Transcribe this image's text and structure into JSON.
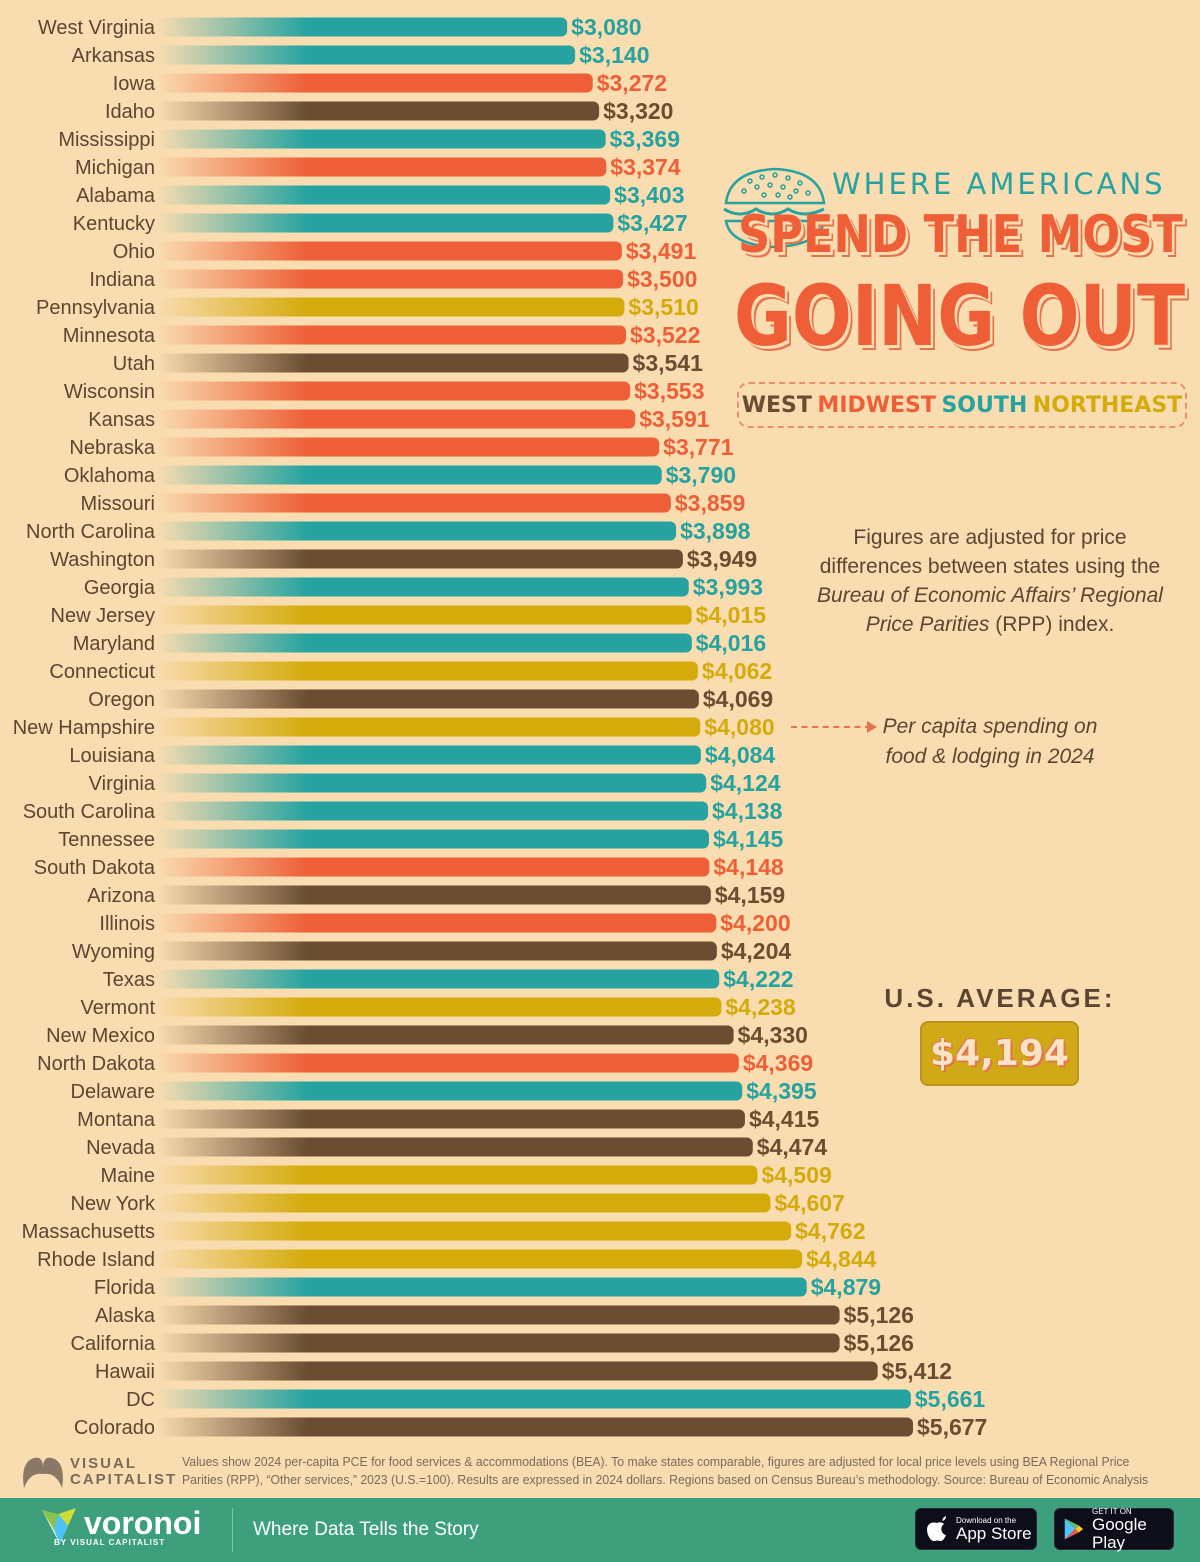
{
  "title": {
    "kicker": "WHERE AMERICANS",
    "line1": "SPEND THE MOST",
    "line2": "GOING OUT"
  },
  "legend": [
    {
      "label": "WEST",
      "color": "#6b4e32"
    },
    {
      "label": "MIDWEST",
      "color": "#ee5f37"
    },
    {
      "label": "SOUTH",
      "color": "#26a3a0"
    },
    {
      "label": "NORTHEAST",
      "color": "#d4ab0b"
    }
  ],
  "note": {
    "line1": "Figures are adjusted for price differences between states using the",
    "italic": "Bureau of Economic Affairs’ Regional Price Parities",
    "line3": " (RPP) index."
  },
  "callout": "Per capita spending on food & lodging in 2024",
  "us_average": {
    "label": "U.S. AVERAGE:",
    "value": "$4,194"
  },
  "source": "Values show 2024 per-capita PCE for food services & accommodations (BEA). To make states comparable, figures are adjusted for local price levels using BEA Regional Price Parities (RPP), “Other services,” 2023 (U.S.=100). Results are expressed in 2024 dollars. Regions based on Census Bureau’s methodology. Source: Bureau of Economic Analysis",
  "branding": {
    "vc_line1": "VISUAL",
    "vc_line2": "CAPITALIST",
    "voronoi": "voronoi",
    "voronoi_sub": "BY VISUAL CAPITALIST",
    "tagline": "Where Data Tells the Story",
    "appstore_small": "Download on the",
    "appstore_big": "App Store",
    "gplay_small": "GET IT ON",
    "gplay_big": "Google Play"
  },
  "region_colors": {
    "West": "#6b4e32",
    "Midwest": "#ee5f37",
    "South": "#26a3a0",
    "Northeast": "#d4ab0b"
  },
  "chart_data": {
    "type": "bar",
    "orientation": "horizontal",
    "title": "Where Americans Spend the Most Going Out",
    "xlabel": "Per capita spending on food & lodging in 2024 (USD)",
    "ylabel": "",
    "value_prefix": "$",
    "grid": false,
    "legend_position": "right",
    "categories": [
      "West Virginia",
      "Arkansas",
      "Iowa",
      "Idaho",
      "Mississippi",
      "Michigan",
      "Alabama",
      "Kentucky",
      "Ohio",
      "Indiana",
      "Pennsylvania",
      "Minnesota",
      "Utah",
      "Wisconsin",
      "Kansas",
      "Nebraska",
      "Oklahoma",
      "Missouri",
      "North Carolina",
      "Washington",
      "Georgia",
      "New Jersey",
      "Maryland",
      "Connecticut",
      "Oregon",
      "New Hampshire",
      "Louisiana",
      "Virginia",
      "South Carolina",
      "Tennessee",
      "South Dakota",
      "Arizona",
      "Illinois",
      "Wyoming",
      "Texas",
      "Vermont",
      "New Mexico",
      "North Dakota",
      "Delaware",
      "Montana",
      "Nevada",
      "Maine",
      "New York",
      "Massachusetts",
      "Rhode Island",
      "Florida",
      "Alaska",
      "California",
      "Hawaii",
      "DC",
      "Colorado"
    ],
    "values": [
      3080,
      3140,
      3272,
      3320,
      3369,
      3374,
      3403,
      3427,
      3491,
      3500,
      3510,
      3522,
      3541,
      3553,
      3591,
      3771,
      3790,
      3859,
      3898,
      3949,
      3993,
      4015,
      4016,
      4062,
      4069,
      4080,
      4084,
      4124,
      4138,
      4145,
      4148,
      4159,
      4200,
      4204,
      4222,
      4238,
      4330,
      4369,
      4395,
      4415,
      4474,
      4509,
      4607,
      4762,
      4844,
      4879,
      5126,
      5126,
      5412,
      5661,
      5677
    ],
    "regions": [
      "South",
      "South",
      "Midwest",
      "West",
      "South",
      "Midwest",
      "South",
      "South",
      "Midwest",
      "Midwest",
      "Northeast",
      "Midwest",
      "West",
      "Midwest",
      "Midwest",
      "Midwest",
      "South",
      "Midwest",
      "South",
      "West",
      "South",
      "Northeast",
      "South",
      "Northeast",
      "West",
      "Northeast",
      "South",
      "South",
      "South",
      "South",
      "Midwest",
      "West",
      "Midwest",
      "West",
      "South",
      "Northeast",
      "West",
      "Midwest",
      "South",
      "West",
      "West",
      "Northeast",
      "Northeast",
      "Northeast",
      "Northeast",
      "South",
      "West",
      "West",
      "West",
      "South",
      "West"
    ],
    "reference": {
      "label": "U.S. Average",
      "value": 4194
    }
  }
}
